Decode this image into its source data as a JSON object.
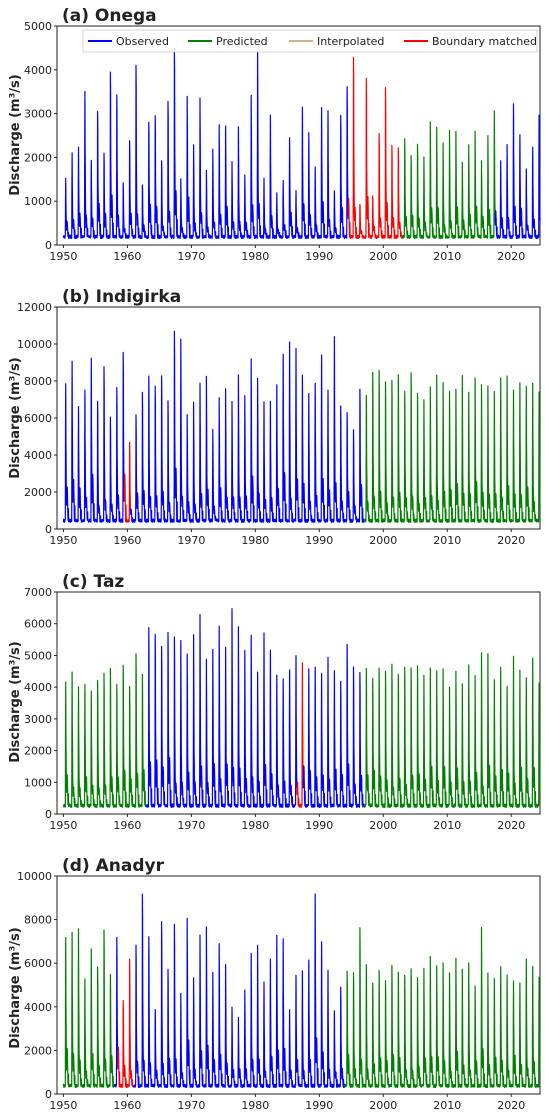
{
  "colors": {
    "observed": "#0000ff",
    "predicted": "#008000",
    "interpolated": "#d2b48c",
    "boundary": "#ff0000"
  },
  "legend": {
    "observed": "Observed",
    "predicted": "Predicted",
    "interpolated": "Interpolated",
    "boundary": "Boundary matched"
  },
  "chart_data": [
    {
      "type": "line",
      "title": "(a) Onega",
      "ylabel": "Discharge (m³/s)",
      "xlim": [
        1949,
        2024.5
      ],
      "ylim": [
        0,
        5000
      ],
      "x_ticks": [
        1950,
        1960,
        1970,
        1980,
        1990,
        2000,
        2010,
        2020
      ],
      "y_ticks": [
        0,
        1000,
        2000,
        3000,
        4000,
        5000
      ],
      "series": [
        {
          "name": "Observed",
          "color_key": "observed",
          "ranges": [
            [
              1950,
              1994.5
            ],
            [
              2017.5,
              2024.5
            ]
          ]
        },
        {
          "name": "Predicted",
          "color_key": "predicted",
          "ranges": [
            [
              1994.5,
              2017.5
            ]
          ]
        },
        {
          "name": "Boundary matched",
          "color_key": "boundary",
          "ranges": [
            [
              1994.5,
              2003
            ]
          ]
        }
      ],
      "annual_peaks": [
        1600,
        2250,
        2400,
        3800,
        2100,
        3300,
        2300,
        4350,
        3750,
        1500,
        2600,
        4500,
        1500,
        3050,
        3200,
        2100,
        3600,
        4900,
        1650,
        3700,
        2500,
        3650,
        1850,
        2400,
        2950,
        2950,
        2050,
        2900,
        1700,
        3750,
        4850,
        1600,
        3250,
        1250,
        1600,
        2650,
        1300,
        3450,
        2800,
        1900,
        3450,
        3350,
        1350,
        3250,
        3950,
        4650,
        1000,
        4200,
        1200,
        2800,
        3950,
        2450,
        2400,
        2650,
        2200,
        2500,
        2150,
        3100,
        2950,
        2500,
        2800,
        2800,
        2050,
        2450,
        2850,
        2100,
        2700,
        3350,
        2100,
        2450,
        3550,
        2750,
        1850,
        2400,
        3250
      ]
    },
    {
      "type": "line",
      "title": "(b) Indigirka",
      "ylabel": "Discharge (m³/s)",
      "xlim": [
        1949,
        2024.5
      ],
      "ylim": [
        0,
        12000
      ],
      "x_ticks": [
        1950,
        1960,
        1970,
        1980,
        1990,
        2000,
        2010,
        2020
      ],
      "y_ticks": [
        0,
        2000,
        4000,
        6000,
        8000,
        10000,
        12000
      ],
      "series": [
        {
          "name": "Observed",
          "color_key": "observed",
          "ranges": [
            [
              1950,
              1997
            ]
          ]
        },
        {
          "name": "Predicted",
          "color_key": "predicted",
          "ranges": [
            [
              1997,
              2024.5
            ]
          ]
        },
        {
          "name": "Boundary matched",
          "color_key": "boundary",
          "ranges": [
            [
              1959.5,
              1960.5
            ]
          ]
        }
      ],
      "annual_peaks": [
        8500,
        10000,
        7200,
        8100,
        10000,
        7500,
        9500,
        6600,
        8300,
        10500,
        5000,
        6700,
        8100,
        9000,
        8400,
        9000,
        7500,
        11700,
        11300,
        6700,
        7500,
        8600,
        9000,
        5900,
        7700,
        8200,
        7500,
        9000,
        7900,
        10000,
        8900,
        7500,
        7500,
        8500,
        10400,
        11000,
        10700,
        9000,
        8000,
        8600,
        10200,
        8100,
        11300,
        7200,
        6800,
        5900,
        8200,
        7900,
        9300,
        9400,
        8700,
        8800,
        9100,
        8200,
        9300,
        8000,
        7600,
        8400,
        9000,
        8700,
        8200,
        8300,
        9000,
        8100,
        8900,
        8600,
        8400,
        8000,
        8900,
        9000,
        8200,
        8700,
        8400,
        8600,
        8100
      ]
    },
    {
      "type": "line",
      "title": "(c) Taz",
      "ylabel": "Discharge (m³/s)",
      "xlim": [
        1949,
        2024.5
      ],
      "ylim": [
        0,
        7000
      ],
      "x_ticks": [
        1950,
        1960,
        1970,
        1980,
        1990,
        2000,
        2010,
        2020
      ],
      "y_ticks": [
        0,
        1000,
        2000,
        3000,
        4000,
        5000,
        6000,
        7000
      ],
      "series": [
        {
          "name": "Predicted",
          "color_key": "predicted",
          "ranges": [
            [
              1950,
              1963
            ],
            [
              1997,
              2024.5
            ]
          ]
        },
        {
          "name": "Observed",
          "color_key": "observed",
          "ranges": [
            [
              1963,
              1997
            ]
          ]
        },
        {
          "name": "Boundary matched",
          "color_key": "boundary",
          "ranges": [
            [
              1986.5,
              1987.5
            ]
          ]
        }
      ],
      "annual_peaks": [
        4500,
        4900,
        4400,
        4500,
        4200,
        4600,
        4800,
        5000,
        4400,
        5100,
        4400,
        5500,
        4800,
        6400,
        6200,
        5800,
        6300,
        6100,
        6000,
        5500,
        6200,
        6900,
        5300,
        5700,
        6500,
        5800,
        7100,
        6400,
        5600,
        6200,
        4900,
        6200,
        5600,
        4800,
        4700,
        5000,
        5400,
        5200,
        5000,
        5100,
        4800,
        5400,
        4900,
        4600,
        5800,
        5100,
        4900,
        5000,
        4700,
        5000,
        4900,
        5100,
        4800,
        5000,
        5000,
        5100,
        4800,
        5000,
        4900,
        5000,
        4400,
        4900,
        4500,
        5100,
        4700,
        5500,
        5500,
        4600,
        5000,
        4400,
        5400,
        4900,
        4700,
        5400,
        4500
      ]
    },
    {
      "type": "line",
      "title": "(d) Anadyr",
      "ylabel": "Discharge (m³/s)",
      "xlim": [
        1949,
        2024.5
      ],
      "ylim": [
        0,
        10000
      ],
      "x_ticks": [
        1950,
        1960,
        1970,
        1980,
        1990,
        2000,
        2010,
        2020
      ],
      "y_ticks": [
        0,
        2000,
        4000,
        6000,
        8000,
        10000
      ],
      "series": [
        {
          "name": "Predicted",
          "color_key": "predicted",
          "ranges": [
            [
              1950,
              1958
            ],
            [
              1994,
              2024.5
            ]
          ]
        },
        {
          "name": "Observed",
          "color_key": "observed",
          "ranges": [
            [
              1958,
              1994
            ]
          ]
        },
        {
          "name": "Boundary matched",
          "color_key": "boundary",
          "ranges": [
            [
              1958.5,
              1961
            ]
          ]
        }
      ],
      "annual_peaks": [
        7800,
        8100,
        8200,
        5800,
        7300,
        6400,
        8200,
        5900,
        7900,
        4700,
        6700,
        7400,
        10000,
        7800,
        4200,
        8600,
        6200,
        8500,
        5000,
        8800,
        5800,
        8000,
        8300,
        6100,
        7600,
        6500,
        4300,
        3700,
        5200,
        7000,
        7500,
        5600,
        6800,
        8000,
        7700,
        4200,
        5900,
        6200,
        6700,
        10000,
        7600,
        6100,
        4100,
        5300,
        6200,
        6100,
        8300,
        6400,
        5600,
        6100,
        5600,
        6400,
        6100,
        5900,
        6300,
        5800,
        6200,
        6800,
        6400,
        6500,
        6100,
        6700,
        6200,
        6600,
        5400,
        8300,
        6000,
        5800,
        6400,
        6000,
        5700,
        5500,
        6800,
        6300,
        5800
      ]
    }
  ]
}
